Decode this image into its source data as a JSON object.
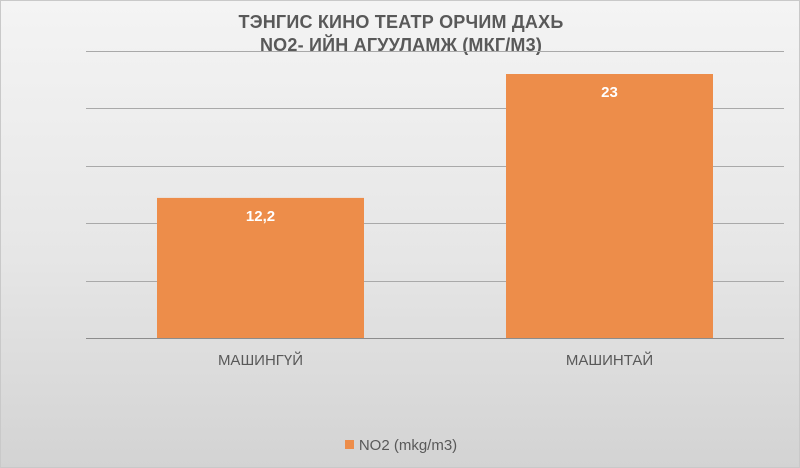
{
  "chart_data": {
    "type": "bar",
    "title": [
      "ТЭНГИС КИНО ТЕАТР ОРЧИМ ДАХЬ",
      "NO2- ИЙН АГУУЛАМЖ (МКГ/М3)"
    ],
    "categories": [
      "МАШИНГҮЙ",
      "МАШИНТАЙ"
    ],
    "series": [
      {
        "name": "NO2 (mkg/m3)",
        "values": [
          12.2,
          23
        ],
        "data_labels": [
          "12,2",
          "23"
        ],
        "color": "#ed8d4a"
      }
    ],
    "ylim": [
      0,
      25
    ],
    "y_gridlines": [
      5,
      10,
      15,
      20,
      25
    ],
    "grid": true,
    "legend": "bottom",
    "colors": {
      "bar": "#ed8d4a",
      "gridline": "#a9a9a9",
      "text": "#595959",
      "background_top": "#f4f4f4",
      "background_bottom": "#d3d3d3"
    }
  }
}
